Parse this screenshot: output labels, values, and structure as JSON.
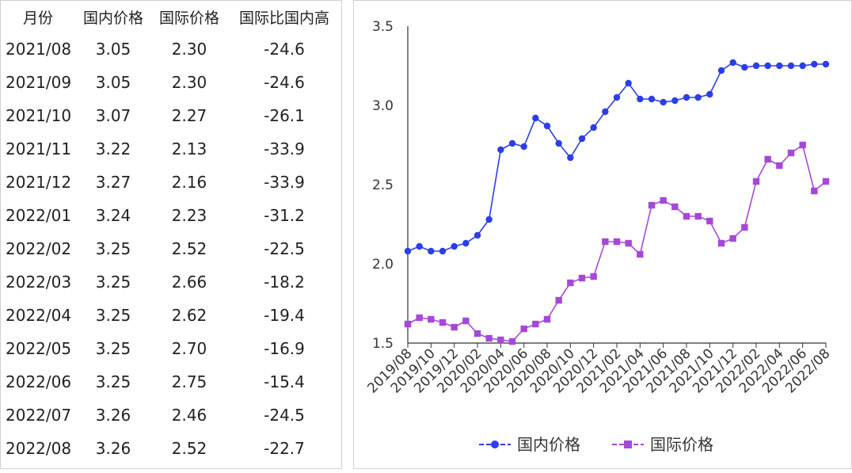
{
  "table": {
    "headers": [
      "月份",
      "国内价格",
      "国际价格",
      "国际比国内高"
    ],
    "rows": [
      [
        "2021/08",
        "3.05",
        "2.30",
        "-24.6"
      ],
      [
        "2021/09",
        "3.05",
        "2.30",
        "-24.6"
      ],
      [
        "2021/10",
        "3.07",
        "2.27",
        "-26.1"
      ],
      [
        "2021/11",
        "3.22",
        "2.13",
        "-33.9"
      ],
      [
        "2021/12",
        "3.27",
        "2.16",
        "-33.9"
      ],
      [
        "2022/01",
        "3.24",
        "2.23",
        "-31.2"
      ],
      [
        "2022/02",
        "3.25",
        "2.52",
        "-22.5"
      ],
      [
        "2022/03",
        "3.25",
        "2.66",
        "-18.2"
      ],
      [
        "2022/04",
        "3.25",
        "2.62",
        "-19.4"
      ],
      [
        "2022/05",
        "3.25",
        "2.70",
        "-16.9"
      ],
      [
        "2022/06",
        "3.25",
        "2.75",
        "-15.4"
      ],
      [
        "2022/07",
        "3.26",
        "2.46",
        "-24.5"
      ],
      [
        "2022/08",
        "3.26",
        "2.52",
        "-22.7"
      ]
    ]
  },
  "chart_data": {
    "type": "line",
    "x": [
      "2019/08",
      "2019/09",
      "2019/10",
      "2019/11",
      "2019/12",
      "2020/01",
      "2020/02",
      "2020/03",
      "2020/04",
      "2020/05",
      "2020/06",
      "2020/07",
      "2020/08",
      "2020/09",
      "2020/10",
      "2020/11",
      "2020/12",
      "2021/01",
      "2021/02",
      "2021/03",
      "2021/04",
      "2021/05",
      "2021/06",
      "2021/07",
      "2021/08",
      "2021/09",
      "2021/10",
      "2021/11",
      "2021/12",
      "2022/01",
      "2022/02",
      "2022/03",
      "2022/04",
      "2022/05",
      "2022/06",
      "2022/07",
      "2022/08"
    ],
    "x_tick_labels": [
      "2019/08",
      "2019/10",
      "2019/12",
      "2020/02",
      "2020/04",
      "2020/06",
      "2020/08",
      "2020/10",
      "2020/12",
      "2021/02",
      "2021/04",
      "2021/06",
      "2021/08",
      "2021/10",
      "2021/12",
      "2022/02",
      "2022/04",
      "2022/06",
      "2022/08"
    ],
    "series": [
      {
        "name": "国内价格",
        "color": "#2b3ee8",
        "marker": "circle",
        "values": [
          2.08,
          2.11,
          2.08,
          2.08,
          2.11,
          2.13,
          2.18,
          2.28,
          2.72,
          2.76,
          2.74,
          2.92,
          2.87,
          2.76,
          2.67,
          2.79,
          2.86,
          2.96,
          3.05,
          3.14,
          3.04,
          3.04,
          3.02,
          3.03,
          3.05,
          3.05,
          3.07,
          3.22,
          3.27,
          3.24,
          3.25,
          3.25,
          3.25,
          3.25,
          3.25,
          3.26,
          3.26
        ]
      },
      {
        "name": "国际价格",
        "color": "#a548d8",
        "marker": "square",
        "values": [
          1.62,
          1.66,
          1.65,
          1.63,
          1.6,
          1.64,
          1.56,
          1.53,
          1.52,
          1.51,
          1.59,
          1.62,
          1.65,
          1.77,
          1.88,
          1.91,
          1.92,
          2.14,
          2.14,
          2.13,
          2.06,
          2.37,
          2.4,
          2.36,
          2.3,
          2.3,
          2.27,
          2.13,
          2.16,
          2.23,
          2.52,
          2.66,
          2.62,
          2.7,
          2.75,
          2.46,
          2.52
        ]
      }
    ],
    "ylim": [
      1.5,
      3.5
    ],
    "yticks": [
      "1.5",
      "2.0",
      "2.5",
      "3.0",
      "3.5"
    ],
    "grid": false,
    "legend": "bottom"
  }
}
